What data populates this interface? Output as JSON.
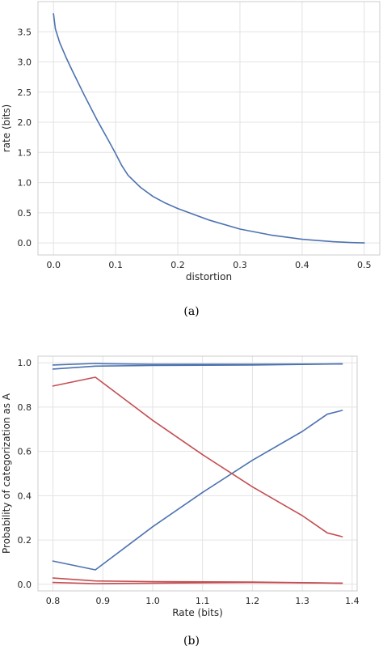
{
  "chart_data": [
    {
      "type": "line",
      "caption": "(a)",
      "xlabel": "distortion",
      "ylabel": "rate (bits)",
      "xlim": [
        -0.025,
        0.525
      ],
      "ylim": [
        -0.2,
        4.0
      ],
      "xticks": [
        0.0,
        0.1,
        0.2,
        0.3,
        0.4,
        0.5
      ],
      "xtick_labels": [
        "0.0",
        "0.1",
        "0.2",
        "0.3",
        "0.4",
        "0.5"
      ],
      "yticks": [
        0.0,
        0.5,
        1.0,
        1.5,
        2.0,
        2.5,
        3.0,
        3.5
      ],
      "ytick_labels": [
        "0.0",
        "0.5",
        "1.0",
        "1.5",
        "2.0",
        "2.5",
        "3.0",
        "3.5"
      ],
      "grid": true,
      "series": [
        {
          "color": "#4c72b0",
          "x": [
            0.0,
            0.003,
            0.01,
            0.02,
            0.03,
            0.05,
            0.07,
            0.09,
            0.1,
            0.11,
            0.12,
            0.14,
            0.16,
            0.18,
            0.2,
            0.25,
            0.3,
            0.35,
            0.4,
            0.45,
            0.48,
            0.5
          ],
          "y": [
            3.8,
            3.55,
            3.32,
            3.08,
            2.86,
            2.44,
            2.04,
            1.67,
            1.48,
            1.28,
            1.12,
            0.92,
            0.77,
            0.66,
            0.57,
            0.38,
            0.23,
            0.13,
            0.06,
            0.02,
            0.005,
            0.0
          ]
        }
      ]
    },
    {
      "type": "line",
      "caption": "(b)",
      "xlabel": "Rate (bits)",
      "ylabel": "Probability of categorization as A",
      "xlim": [
        0.77,
        1.41
      ],
      "ylim": [
        -0.03,
        1.03
      ],
      "xticks": [
        0.8,
        0.9,
        1.0,
        1.1,
        1.2,
        1.3,
        1.4
      ],
      "xtick_labels": [
        "0.8",
        "0.9",
        "1.0",
        "1.1",
        "1.2",
        "1.3",
        "1.4"
      ],
      "yticks": [
        0.0,
        0.2,
        0.4,
        0.6,
        0.8,
        1.0
      ],
      "ytick_labels": [
        "0.0",
        "0.2",
        "0.4",
        "0.6",
        "0.8",
        "1.0"
      ],
      "grid": true,
      "series": [
        {
          "color": "#4c72b0",
          "x": [
            0.8,
            0.885,
            0.9,
            1.0,
            1.2,
            1.38
          ],
          "y": [
            0.99,
            0.997,
            0.996,
            0.993,
            0.993,
            0.995
          ]
        },
        {
          "color": "#4c72b0",
          "x": [
            0.8,
            0.885,
            1.0,
            1.2,
            1.38
          ],
          "y": [
            0.972,
            0.985,
            0.988,
            0.99,
            0.995
          ]
        },
        {
          "color": "#4c72b0",
          "x": [
            0.8,
            0.885,
            1.0,
            1.1,
            1.2,
            1.3,
            1.35,
            1.38
          ],
          "y": [
            0.105,
            0.065,
            0.26,
            0.415,
            0.56,
            0.69,
            0.768,
            0.785
          ]
        },
        {
          "color": "#c44e52",
          "x": [
            0.8,
            0.885,
            1.0,
            1.1,
            1.2,
            1.3,
            1.35,
            1.38
          ],
          "y": [
            0.895,
            0.935,
            0.74,
            0.585,
            0.44,
            0.31,
            0.232,
            0.215
          ]
        },
        {
          "color": "#c44e52",
          "x": [
            0.8,
            0.885,
            1.0,
            1.2,
            1.38
          ],
          "y": [
            0.028,
            0.015,
            0.012,
            0.01,
            0.005
          ]
        },
        {
          "color": "#c44e52",
          "x": [
            0.8,
            0.885,
            1.0,
            1.2,
            1.38
          ],
          "y": [
            0.008,
            0.003,
            0.005,
            0.008,
            0.005
          ]
        }
      ]
    }
  ]
}
